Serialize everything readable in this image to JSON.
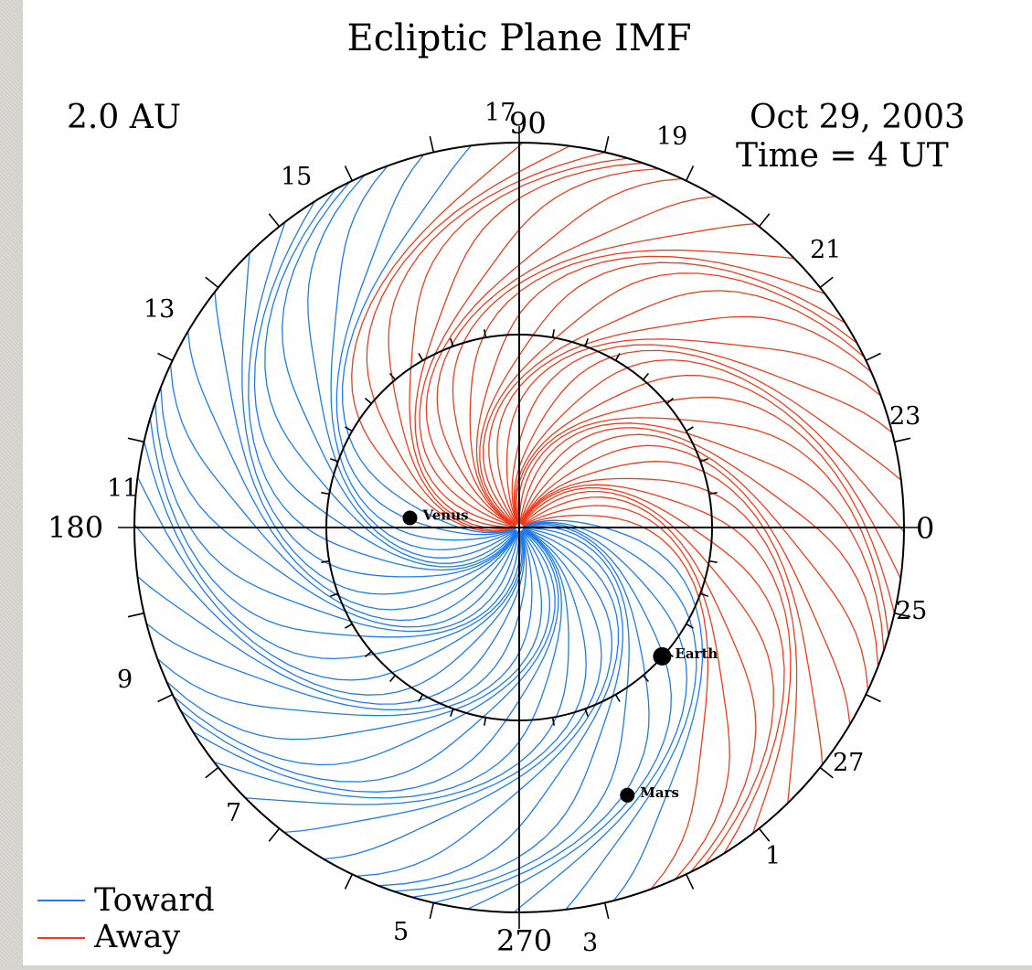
{
  "title": "Ecliptic Plane IMF",
  "distance_label": "2.0 AU",
  "date_label": "Oct 29, 2003",
  "time_label": "Time =  4 UT",
  "axis_labels": {
    "top": "90",
    "left": "180",
    "right": "0",
    "bottom": "270"
  },
  "day_ticks": [
    "17",
    "19",
    "21",
    "23",
    "25",
    "27",
    "1",
    "3",
    "5",
    "7",
    "9",
    "11",
    "13",
    "15"
  ],
  "planets": [
    {
      "name": "Venus",
      "radius_au": 0.57,
      "angle_deg": 175
    },
    {
      "name": "Earth",
      "radius_au": 1.0,
      "angle_deg": 318
    },
    {
      "name": "Mars",
      "radius_au": 1.5,
      "angle_deg": 292
    }
  ],
  "inner_circle_radius_au": 1.0,
  "outer_circle_radius_au": 2.0,
  "legend": [
    {
      "label": "Toward",
      "color": "#1e7bf0"
    },
    {
      "label": "Away",
      "color": "#f03c1e"
    }
  ],
  "colors": {
    "toward": "#1e7bf0",
    "away": "#f03c1e",
    "frame": "#000000"
  }
}
